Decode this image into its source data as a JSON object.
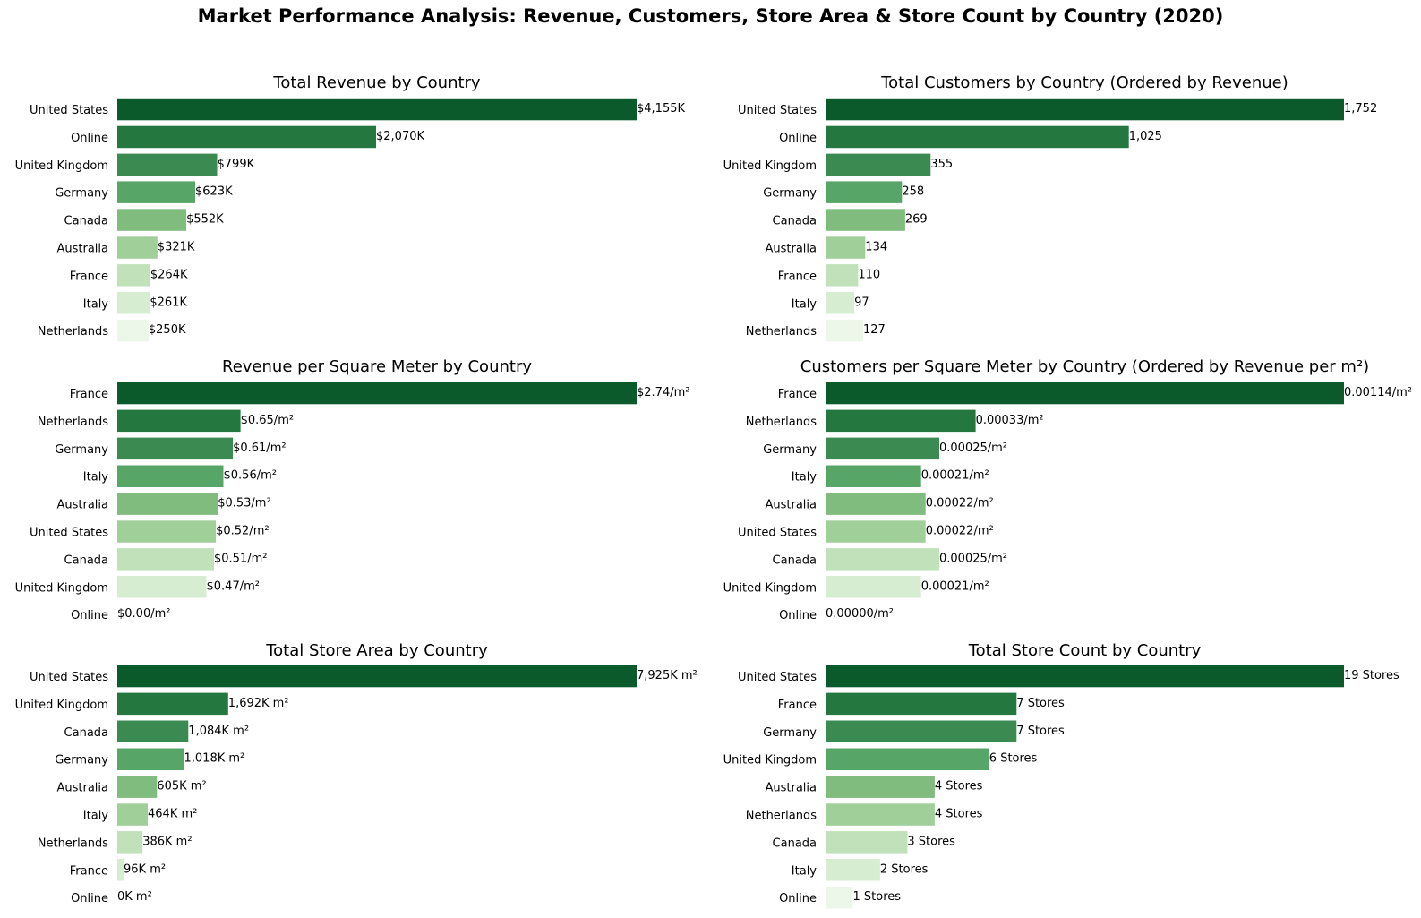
{
  "figure": {
    "title": "Market Performance Analysis: Revenue, Customers, Store Area & Store Count by Country (2020)"
  },
  "palette": [
    "#0b5a2b",
    "#23773f",
    "#3a8a52",
    "#57a567",
    "#80bc7d",
    "#a1cf99",
    "#c0e1b9",
    "#d7edd2",
    "#ecf7e9"
  ],
  "chart_data": [
    {
      "type": "bar",
      "orientation": "horizontal",
      "title": "Total Revenue by Country",
      "categories": [
        "United States",
        "Online",
        "United Kingdom",
        "Germany",
        "Canada",
        "Australia",
        "France",
        "Italy",
        "Netherlands"
      ],
      "values": [
        4155,
        2070,
        799,
        623,
        552,
        321,
        264,
        261,
        250
      ],
      "labels": [
        "$4,155K",
        "$2,070K",
        "$799K",
        "$623K",
        "$552K",
        "$321K",
        "$264K",
        "$261K",
        "$250K"
      ],
      "unit": "thousand $",
      "grid": false
    },
    {
      "type": "bar",
      "orientation": "horizontal",
      "title": "Total Customers by Country (Ordered by Revenue)",
      "categories": [
        "United States",
        "Online",
        "United Kingdom",
        "Germany",
        "Canada",
        "Australia",
        "France",
        "Italy",
        "Netherlands"
      ],
      "values": [
        1752,
        1025,
        355,
        258,
        269,
        134,
        110,
        97,
        127
      ],
      "labels": [
        "1,752",
        "1,025",
        "355",
        "258",
        "269",
        "134",
        "110",
        "97",
        "127"
      ],
      "grid": false
    },
    {
      "type": "bar",
      "orientation": "horizontal",
      "title": "Revenue per Square Meter by Country",
      "categories": [
        "France",
        "Netherlands",
        "Germany",
        "Italy",
        "Australia",
        "United States",
        "Canada",
        "United Kingdom",
        "Online"
      ],
      "values": [
        2.74,
        0.65,
        0.61,
        0.56,
        0.53,
        0.52,
        0.51,
        0.47,
        0.0
      ],
      "labels": [
        "$2.74/m²",
        "$0.65/m²",
        "$0.61/m²",
        "$0.56/m²",
        "$0.53/m²",
        "$0.52/m²",
        "$0.51/m²",
        "$0.47/m²",
        "$0.00/m²"
      ],
      "grid": false
    },
    {
      "type": "bar",
      "orientation": "horizontal",
      "title": "Customers per Square Meter by Country (Ordered by Revenue per m²)",
      "categories": [
        "France",
        "Netherlands",
        "Germany",
        "Italy",
        "Australia",
        "United States",
        "Canada",
        "United Kingdom",
        "Online"
      ],
      "values": [
        0.00114,
        0.00033,
        0.00025,
        0.00021,
        0.00022,
        0.00022,
        0.00025,
        0.00021,
        0.0
      ],
      "labels": [
        "0.00114/m²",
        "0.00033/m²",
        "0.00025/m²",
        "0.00021/m²",
        "0.00022/m²",
        "0.00022/m²",
        "0.00025/m²",
        "0.00021/m²",
        "0.00000/m²"
      ],
      "grid": false
    },
    {
      "type": "bar",
      "orientation": "horizontal",
      "title": "Total Store Area by Country",
      "categories": [
        "United States",
        "United Kingdom",
        "Canada",
        "Germany",
        "Australia",
        "Italy",
        "Netherlands",
        "France",
        "Online"
      ],
      "values": [
        7925,
        1692,
        1084,
        1018,
        605,
        464,
        386,
        96,
        0
      ],
      "labels": [
        "7,925K m²",
        "1,692K m²",
        "1,084K m²",
        "1,018K m²",
        "605K m²",
        "464K m²",
        "386K m²",
        "96K m²",
        "0K m²"
      ],
      "unit": "thousand m²",
      "grid": false
    },
    {
      "type": "bar",
      "orientation": "horizontal",
      "title": "Total Store Count by Country",
      "categories": [
        "United States",
        "France",
        "Germany",
        "United Kingdom",
        "Australia",
        "Netherlands",
        "Canada",
        "Italy",
        "Online"
      ],
      "values": [
        19,
        7,
        7,
        6,
        4,
        4,
        3,
        2,
        1
      ],
      "labels": [
        "19 Stores",
        "7 Stores",
        "7 Stores",
        "6 Stores",
        "4 Stores",
        "4 Stores",
        "3 Stores",
        "2 Stores",
        "1 Stores"
      ],
      "grid": false
    }
  ]
}
